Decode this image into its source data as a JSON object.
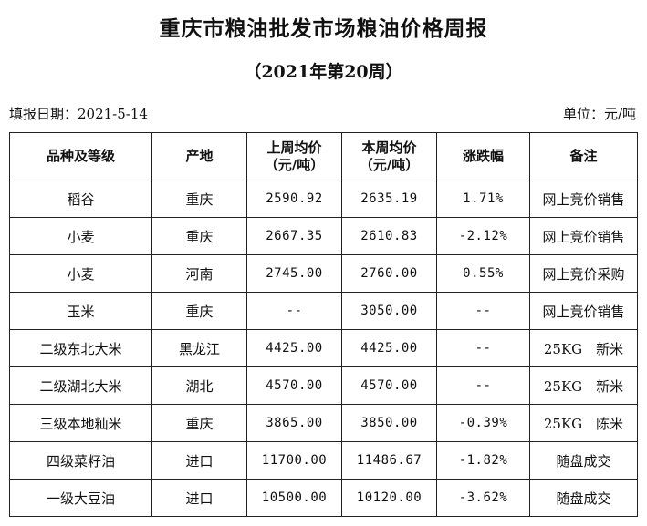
{
  "header": {
    "title": "重庆市粮油批发市场粮油价格周报",
    "subtitle": "（2021年第20周）",
    "report_date_label": "填报日期：2021-5-14",
    "unit_label": "单位：元/吨"
  },
  "table": {
    "columns": [
      "品种及等级",
      "产地",
      "上周均价（元/吨）",
      "本周均价（元/吨）",
      "涨跌幅",
      "备注"
    ],
    "column_lines": [
      [
        "品种及等级"
      ],
      [
        "产地"
      ],
      [
        "上周均价",
        "（元/吨）"
      ],
      [
        "本周均价",
        "（元/吨）"
      ],
      [
        "涨跌幅"
      ],
      [
        "备注"
      ]
    ],
    "rows": [
      [
        "稻谷",
        "重庆",
        "2590.92",
        "2635.19",
        "1.71%",
        "网上竞价销售"
      ],
      [
        "小麦",
        "重庆",
        "2667.35",
        "2610.83",
        "-2.12%",
        "网上竞价销售"
      ],
      [
        "小麦",
        "河南",
        "2745.00",
        "2760.00",
        "0.55%",
        "网上竞价采购"
      ],
      [
        "玉米",
        "重庆",
        "--",
        "3050.00",
        "--",
        "网上竞价销售"
      ],
      [
        "二级东北大米",
        "黑龙江",
        "4425.00",
        "4425.00",
        "--",
        "25KG　新米"
      ],
      [
        "二级湖北大米",
        "湖北",
        "4570.00",
        "4570.00",
        "--",
        "25KG　新米"
      ],
      [
        "三级本地籼米",
        "重庆",
        "3865.00",
        "3850.00",
        "-0.39%",
        "25KG　陈米"
      ],
      [
        "四级菜籽油",
        "进口",
        "11700.00",
        "11486.67",
        "-1.82%",
        "随盘成交"
      ],
      [
        "一级大豆油",
        "进口",
        "10500.00",
        "10120.00",
        "-3.62%",
        "随盘成交"
      ]
    ]
  }
}
